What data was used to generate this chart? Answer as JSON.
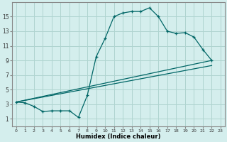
{
  "xlabel": "Humidex (Indice chaleur)",
  "bg_color": "#d4eeed",
  "grid_color": "#afd4d0",
  "line_color": "#006666",
  "xlim": [
    -0.5,
    23.5
  ],
  "ylim": [
    0,
    17
  ],
  "xticks": [
    0,
    1,
    2,
    3,
    4,
    5,
    6,
    7,
    8,
    9,
    10,
    11,
    12,
    13,
    14,
    15,
    16,
    17,
    18,
    19,
    20,
    21,
    22,
    23
  ],
  "yticks": [
    1,
    3,
    5,
    7,
    9,
    11,
    13,
    15
  ],
  "line1_x": [
    0,
    1,
    2,
    3,
    4,
    5,
    6,
    7,
    8,
    9,
    10,
    11,
    12,
    13,
    14,
    15,
    16,
    17,
    18,
    19,
    20,
    21,
    22
  ],
  "line1_y": [
    3.3,
    3.2,
    2.7,
    2.0,
    2.1,
    2.1,
    2.1,
    1.2,
    4.2,
    9.5,
    12.0,
    15.0,
    15.5,
    15.7,
    15.7,
    16.2,
    15.0,
    13.0,
    12.7,
    12.8,
    12.2,
    10.5,
    9.0
  ],
  "line2_x": [
    0,
    22
  ],
  "line2_y": [
    3.3,
    9.0
  ],
  "line3_x": [
    0,
    22
  ],
  "line3_y": [
    3.3,
    8.3
  ],
  "marker": "+"
}
